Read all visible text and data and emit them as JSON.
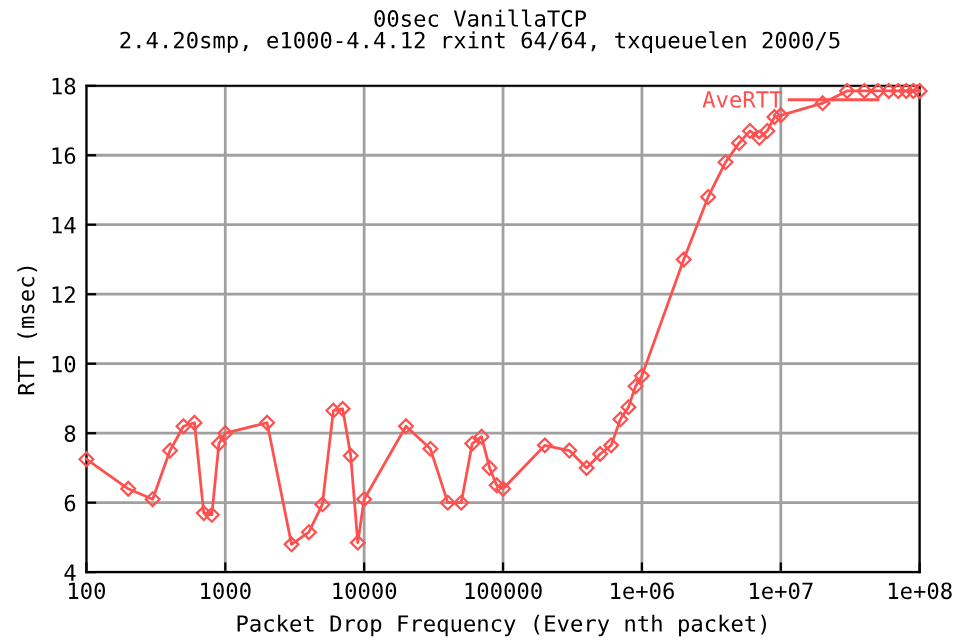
{
  "chart_data": {
    "type": "line",
    "title": "00sec VanillaTCP\n2.4.20smp, e1000-4.4.12 rxint 64/64, txqueuelen 2000/5",
    "xlabel": "Packet Drop Frequency (Every nth packet)",
    "ylabel": "RTT (msec)",
    "x": [
      100,
      200,
      300,
      400,
      500,
      600,
      700,
      800,
      900,
      1000,
      2000,
      3000,
      4000,
      5000,
      6000,
      7000,
      8000,
      9000,
      10000,
      20000,
      30000,
      40000,
      50000,
      60000,
      70000,
      80000,
      90000,
      100000,
      200000,
      300000,
      400000,
      500000,
      600000,
      700000,
      800000,
      900000,
      1000000,
      2000000,
      3000000,
      4000000,
      5000000,
      6000000,
      7000000,
      8000000,
      9000000,
      10000000,
      20000000,
      30000000,
      40000000,
      50000000,
      60000000,
      70000000,
      80000000,
      90000000,
      100000000
    ],
    "series": [
      {
        "name": "AveRTT",
        "color": "#ff5050",
        "values": [
          7.25,
          6.4,
          6.1,
          7.5,
          8.2,
          8.3,
          5.7,
          5.65,
          7.7,
          8.0,
          8.3,
          4.8,
          5.15,
          5.95,
          8.65,
          8.7,
          7.35,
          4.85,
          6.1,
          8.2,
          7.55,
          6.0,
          6.0,
          7.7,
          7.9,
          7.0,
          6.5,
          6.4,
          7.65,
          7.5,
          7.0,
          7.4,
          7.65,
          8.4,
          8.75,
          9.35,
          9.65,
          13.0,
          14.8,
          15.8,
          16.35,
          16.7,
          16.5,
          16.7,
          17.1,
          17.15,
          17.5,
          17.85,
          17.85,
          17.85,
          17.85,
          17.85,
          17.85,
          17.85,
          17.85
        ]
      }
    ],
    "log": "x",
    "xlim": [
      100,
      100000000
    ],
    "xticks": [
      100,
      1000,
      10000,
      100000,
      {
        "value": 1000000,
        "label": "1e+06"
      },
      {
        "value": 10000000,
        "label": "1e+07"
      },
      {
        "value": 100000000,
        "label": "1e+08"
      }
    ],
    "ylim": [
      4,
      18
    ],
    "yticks": [
      4,
      6,
      8,
      10,
      12,
      14,
      16,
      18
    ],
    "grid": true,
    "legend": "top right",
    "marker": "diamond",
    "line_style": "solid"
  }
}
